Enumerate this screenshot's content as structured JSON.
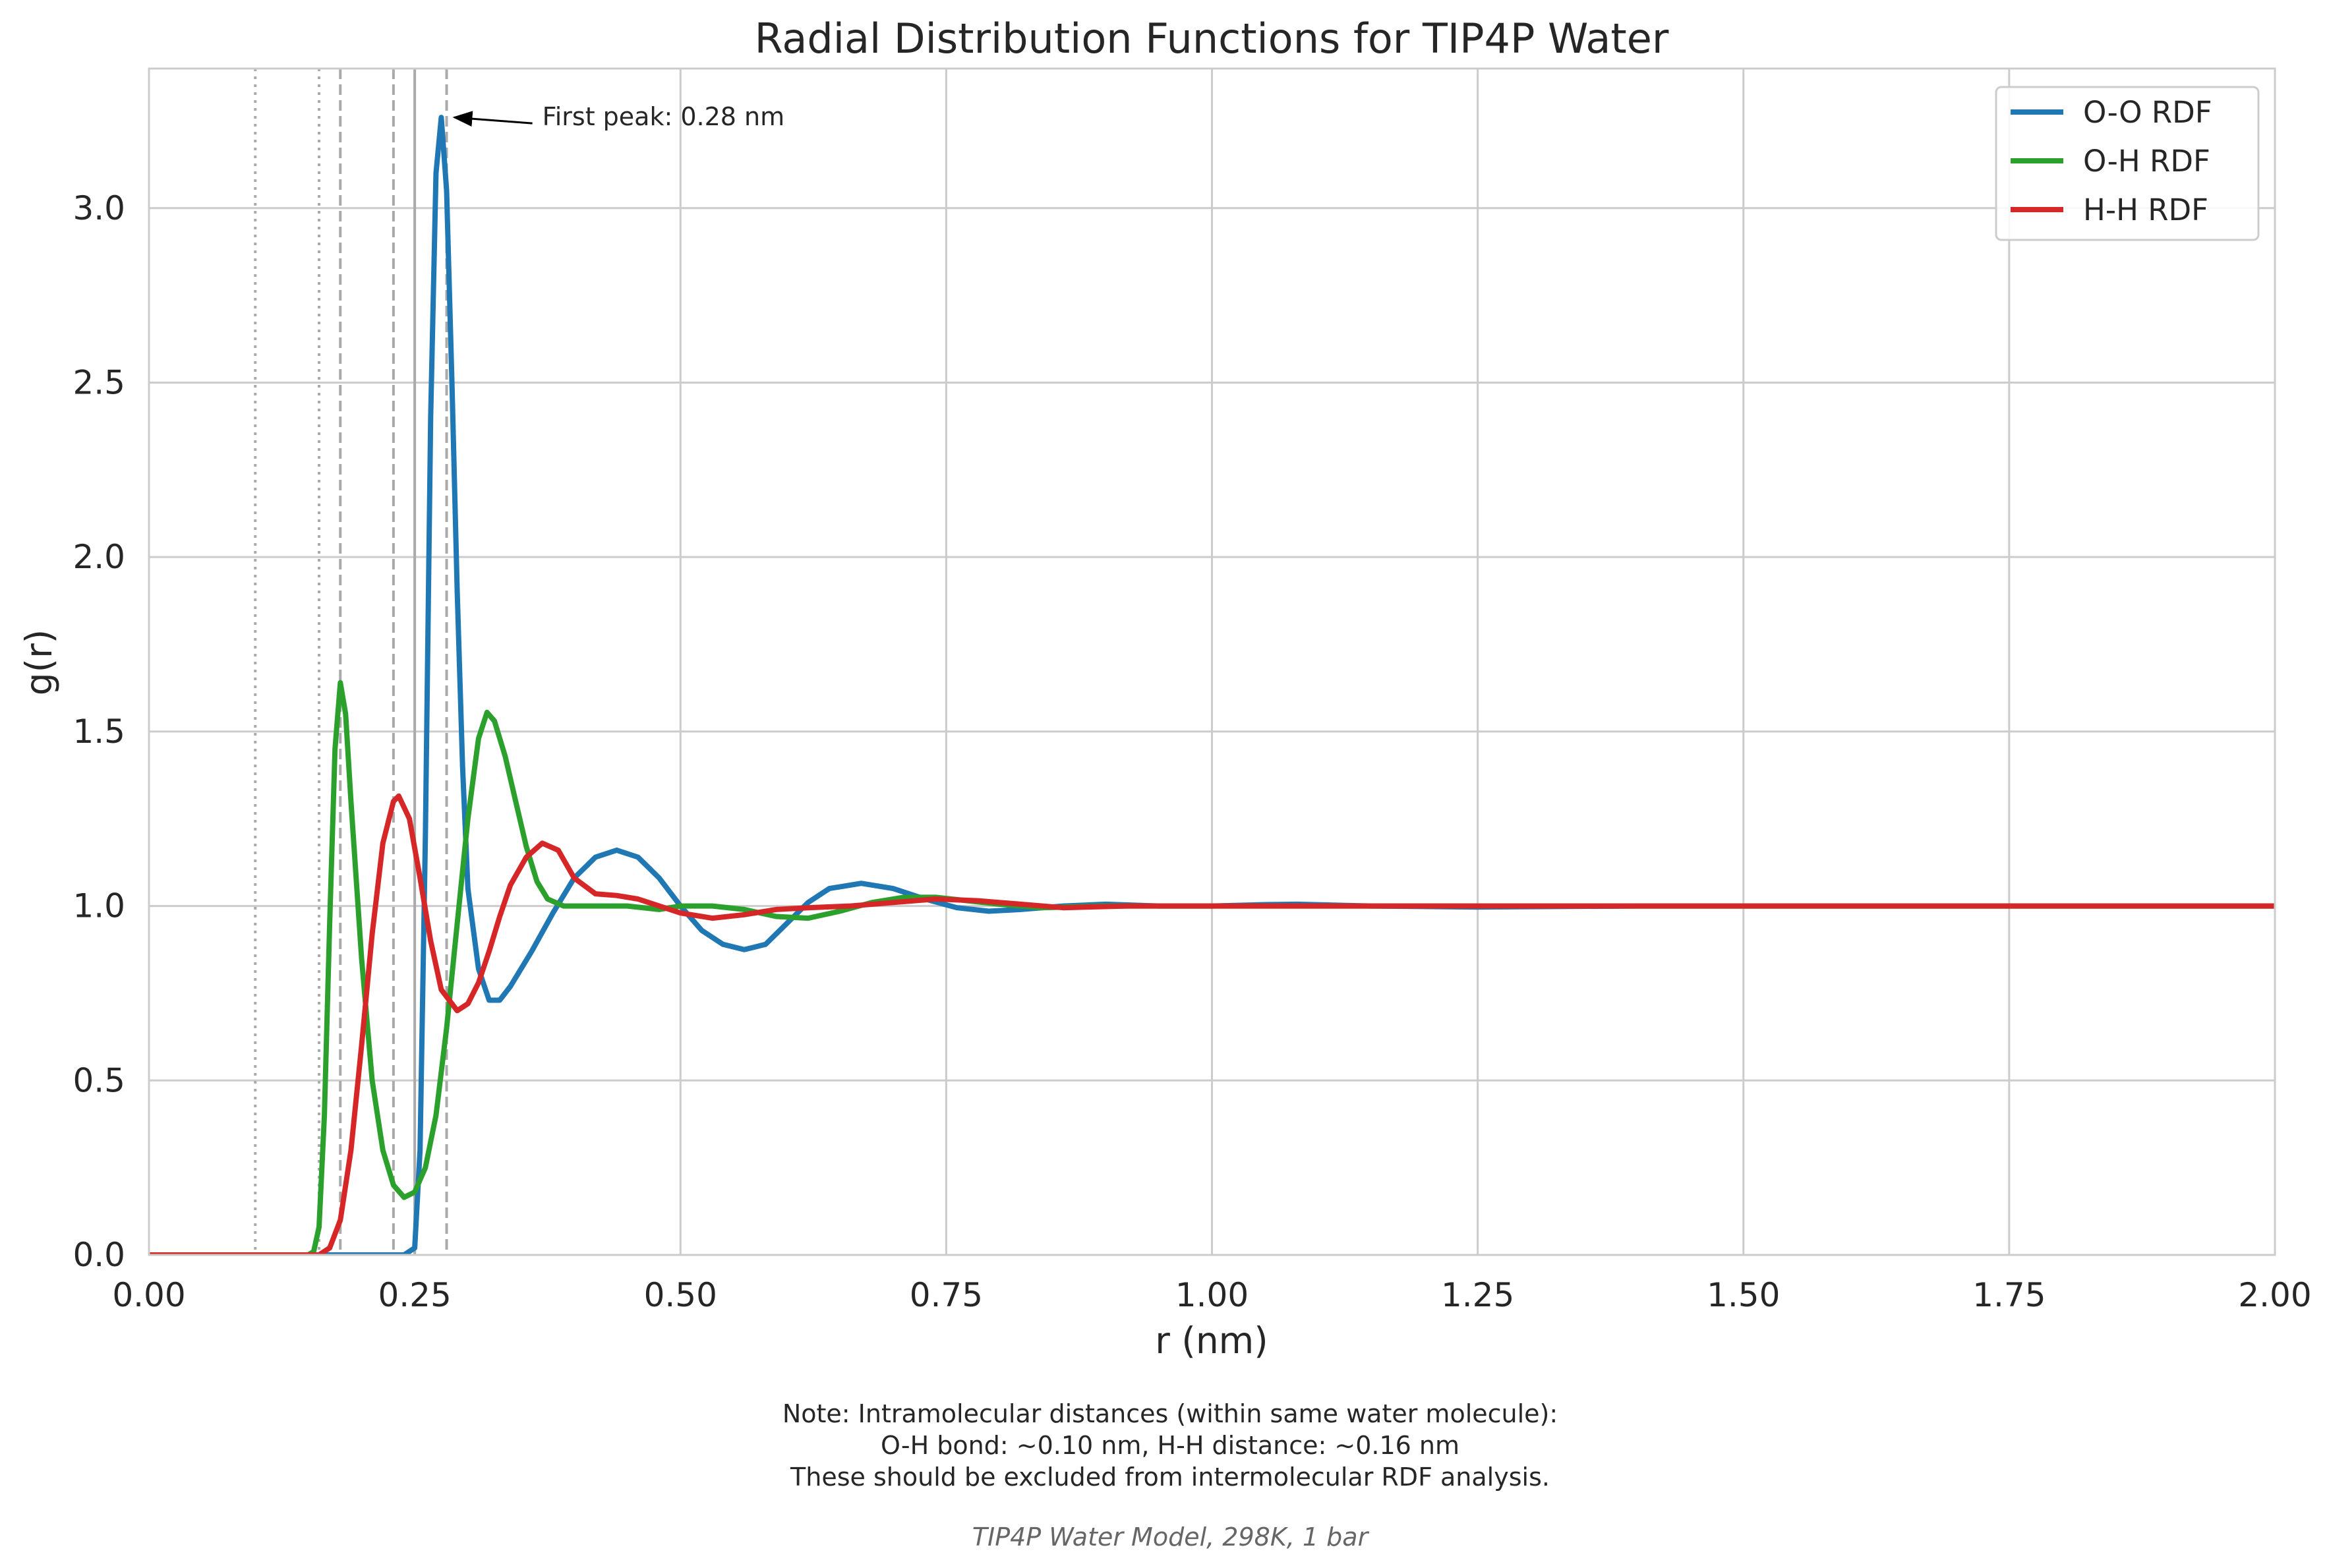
{
  "chart_data": {
    "type": "line",
    "title": "Radial Distribution Functions for TIP4P Water",
    "xlabel": "r (nm)",
    "ylabel": "g(r)",
    "xlim": [
      0,
      2.0
    ],
    "ylim": [
      0,
      3.4
    ],
    "xticks": [
      "0.00",
      "0.25",
      "0.50",
      "0.75",
      "1.00",
      "1.25",
      "1.50",
      "1.75",
      "2.00"
    ],
    "yticks": [
      "0.0",
      "0.5",
      "1.0",
      "1.5",
      "2.0",
      "2.5",
      "3.0"
    ],
    "xtick_values": [
      0,
      0.25,
      0.5,
      0.75,
      1.0,
      1.25,
      1.5,
      1.75,
      2.0
    ],
    "ytick_values": [
      0,
      0.5,
      1.0,
      1.5,
      2.0,
      2.5,
      3.0
    ],
    "grid": true,
    "legend_position": "top-right",
    "series": [
      {
        "name": "O-O RDF",
        "color": "#1f77b4",
        "points": [
          [
            0,
            0
          ],
          [
            0.24,
            0
          ],
          [
            0.25,
            0.02
          ],
          [
            0.255,
            0.3
          ],
          [
            0.26,
            1.2
          ],
          [
            0.265,
            2.4
          ],
          [
            0.27,
            3.1
          ],
          [
            0.275,
            3.26
          ],
          [
            0.28,
            3.05
          ],
          [
            0.285,
            2.5
          ],
          [
            0.29,
            1.9
          ],
          [
            0.295,
            1.4
          ],
          [
            0.3,
            1.05
          ],
          [
            0.31,
            0.82
          ],
          [
            0.32,
            0.73
          ],
          [
            0.33,
            0.73
          ],
          [
            0.34,
            0.77
          ],
          [
            0.36,
            0.87
          ],
          [
            0.38,
            0.98
          ],
          [
            0.4,
            1.08
          ],
          [
            0.42,
            1.14
          ],
          [
            0.44,
            1.16
          ],
          [
            0.46,
            1.14
          ],
          [
            0.48,
            1.08
          ],
          [
            0.5,
            1.0
          ],
          [
            0.52,
            0.93
          ],
          [
            0.54,
            0.89
          ],
          [
            0.56,
            0.875
          ],
          [
            0.58,
            0.89
          ],
          [
            0.6,
            0.95
          ],
          [
            0.62,
            1.01
          ],
          [
            0.64,
            1.05
          ],
          [
            0.67,
            1.065
          ],
          [
            0.7,
            1.05
          ],
          [
            0.73,
            1.02
          ],
          [
            0.76,
            0.995
          ],
          [
            0.79,
            0.985
          ],
          [
            0.82,
            0.99
          ],
          [
            0.86,
            1.0
          ],
          [
            0.9,
            1.005
          ],
          [
            0.95,
            1.0
          ],
          [
            1.0,
            1.0
          ],
          [
            1.05,
            1.004
          ],
          [
            1.08,
            1.005
          ],
          [
            1.15,
            1.0
          ],
          [
            1.25,
            0.997
          ],
          [
            1.4,
            1.0
          ],
          [
            1.6,
            1.0
          ],
          [
            1.8,
            1.0
          ],
          [
            2.0,
            1.0
          ]
        ]
      },
      {
        "name": "O-H RDF",
        "color": "#2ca02c",
        "points": [
          [
            0,
            0
          ],
          [
            0.15,
            0
          ],
          [
            0.155,
            0.01
          ],
          [
            0.16,
            0.08
          ],
          [
            0.165,
            0.4
          ],
          [
            0.17,
            0.95
          ],
          [
            0.175,
            1.45
          ],
          [
            0.18,
            1.64
          ],
          [
            0.185,
            1.55
          ],
          [
            0.19,
            1.3
          ],
          [
            0.2,
            0.85
          ],
          [
            0.21,
            0.5
          ],
          [
            0.22,
            0.3
          ],
          [
            0.23,
            0.2
          ],
          [
            0.24,
            0.165
          ],
          [
            0.25,
            0.18
          ],
          [
            0.26,
            0.25
          ],
          [
            0.27,
            0.4
          ],
          [
            0.28,
            0.65
          ],
          [
            0.29,
            0.95
          ],
          [
            0.3,
            1.25
          ],
          [
            0.31,
            1.48
          ],
          [
            0.318,
            1.555
          ],
          [
            0.325,
            1.53
          ],
          [
            0.335,
            1.43
          ],
          [
            0.345,
            1.3
          ],
          [
            0.355,
            1.17
          ],
          [
            0.365,
            1.07
          ],
          [
            0.375,
            1.02
          ],
          [
            0.39,
            1.0
          ],
          [
            0.42,
            1.0
          ],
          [
            0.45,
            1.0
          ],
          [
            0.48,
            0.99
          ],
          [
            0.5,
            1.0
          ],
          [
            0.53,
            1.0
          ],
          [
            0.56,
            0.99
          ],
          [
            0.59,
            0.97
          ],
          [
            0.62,
            0.965
          ],
          [
            0.65,
            0.985
          ],
          [
            0.68,
            1.01
          ],
          [
            0.71,
            1.025
          ],
          [
            0.74,
            1.025
          ],
          [
            0.77,
            1.015
          ],
          [
            0.8,
            1.005
          ],
          [
            0.84,
            0.995
          ],
          [
            0.9,
            1.0
          ],
          [
            1.0,
            1.0
          ],
          [
            1.2,
            1.0
          ],
          [
            1.5,
            1.0
          ],
          [
            2.0,
            1.0
          ]
        ]
      },
      {
        "name": "H-H RDF",
        "color": "#d62728",
        "points": [
          [
            0,
            0
          ],
          [
            0.16,
            0
          ],
          [
            0.17,
            0.02
          ],
          [
            0.18,
            0.1
          ],
          [
            0.19,
            0.3
          ],
          [
            0.2,
            0.6
          ],
          [
            0.21,
            0.92
          ],
          [
            0.22,
            1.18
          ],
          [
            0.23,
            1.3
          ],
          [
            0.235,
            1.315
          ],
          [
            0.245,
            1.25
          ],
          [
            0.255,
            1.08
          ],
          [
            0.265,
            0.9
          ],
          [
            0.275,
            0.76
          ],
          [
            0.29,
            0.7
          ],
          [
            0.3,
            0.72
          ],
          [
            0.31,
            0.78
          ],
          [
            0.32,
            0.87
          ],
          [
            0.33,
            0.97
          ],
          [
            0.34,
            1.06
          ],
          [
            0.355,
            1.14
          ],
          [
            0.37,
            1.18
          ],
          [
            0.385,
            1.16
          ],
          [
            0.4,
            1.08
          ],
          [
            0.42,
            1.035
          ],
          [
            0.44,
            1.03
          ],
          [
            0.46,
            1.02
          ],
          [
            0.48,
            1.0
          ],
          [
            0.5,
            0.98
          ],
          [
            0.53,
            0.965
          ],
          [
            0.56,
            0.975
          ],
          [
            0.59,
            0.99
          ],
          [
            0.62,
            0.995
          ],
          [
            0.66,
            1.0
          ],
          [
            0.7,
            1.01
          ],
          [
            0.74,
            1.02
          ],
          [
            0.78,
            1.015
          ],
          [
            0.82,
            1.005
          ],
          [
            0.86,
            0.995
          ],
          [
            0.92,
            1.0
          ],
          [
            1.0,
            1.0
          ],
          [
            1.2,
            1.0
          ],
          [
            1.5,
            1.0
          ],
          [
            2.0,
            1.0
          ]
        ]
      }
    ],
    "vertical_lines": [
      {
        "x": 0.1,
        "style": "dotted"
      },
      {
        "x": 0.16,
        "style": "dotted"
      },
      {
        "x": 0.18,
        "style": "dashed"
      },
      {
        "x": 0.23,
        "style": "dashed"
      },
      {
        "x": 0.25,
        "style": "solid"
      },
      {
        "x": 0.28,
        "style": "dashed"
      }
    ],
    "annotation": {
      "text": "First peak: 0.28 nm",
      "arrow_to": [
        0.28,
        3.26
      ],
      "text_at": [
        0.37,
        3.26
      ]
    }
  },
  "note": {
    "lines": [
      "Note: Intramolecular distances (within same water molecule):",
      "O-H bond: ~0.10 nm, H-H distance: ~0.16 nm",
      "These should be excluded from intermolecular RDF analysis."
    ]
  },
  "footer": "TIP4P Water Model, 298K, 1 bar"
}
